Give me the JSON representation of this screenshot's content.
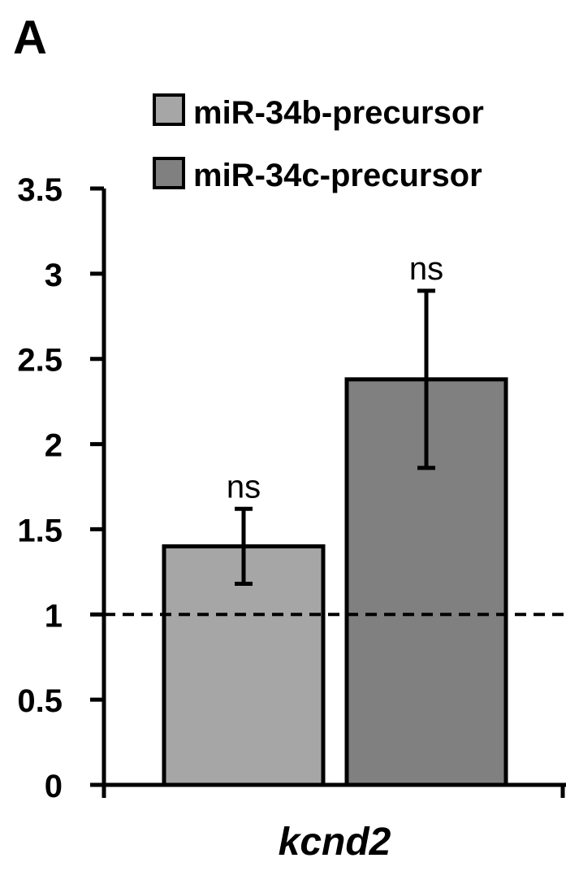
{
  "panel_label": "A",
  "chart_data": {
    "type": "bar",
    "categories": [
      "kcnd2"
    ],
    "series": [
      {
        "name": "miR-34b-precursor",
        "values": [
          1.4
        ],
        "error_low": [
          1.18
        ],
        "error_high": [
          1.62
        ],
        "annotation": "ns",
        "color": "#a6a6a6"
      },
      {
        "name": "miR-34c-precursor",
        "values": [
          2.38
        ],
        "error_low": [
          1.86
        ],
        "error_high": [
          2.9
        ],
        "annotation": "ns",
        "color": "#808080"
      }
    ],
    "ylim": [
      0,
      3.5
    ],
    "yticks": [
      0,
      0.5,
      1,
      1.5,
      2,
      2.5,
      3,
      3.5
    ],
    "ytick_labels": [
      "0",
      "0.5",
      "1",
      "1.5",
      "2",
      "2.5",
      "3",
      "3.5"
    ],
    "reference_line": 1,
    "grid": false,
    "legend_position": "top-right",
    "xlabel": "",
    "ylabel": ""
  }
}
